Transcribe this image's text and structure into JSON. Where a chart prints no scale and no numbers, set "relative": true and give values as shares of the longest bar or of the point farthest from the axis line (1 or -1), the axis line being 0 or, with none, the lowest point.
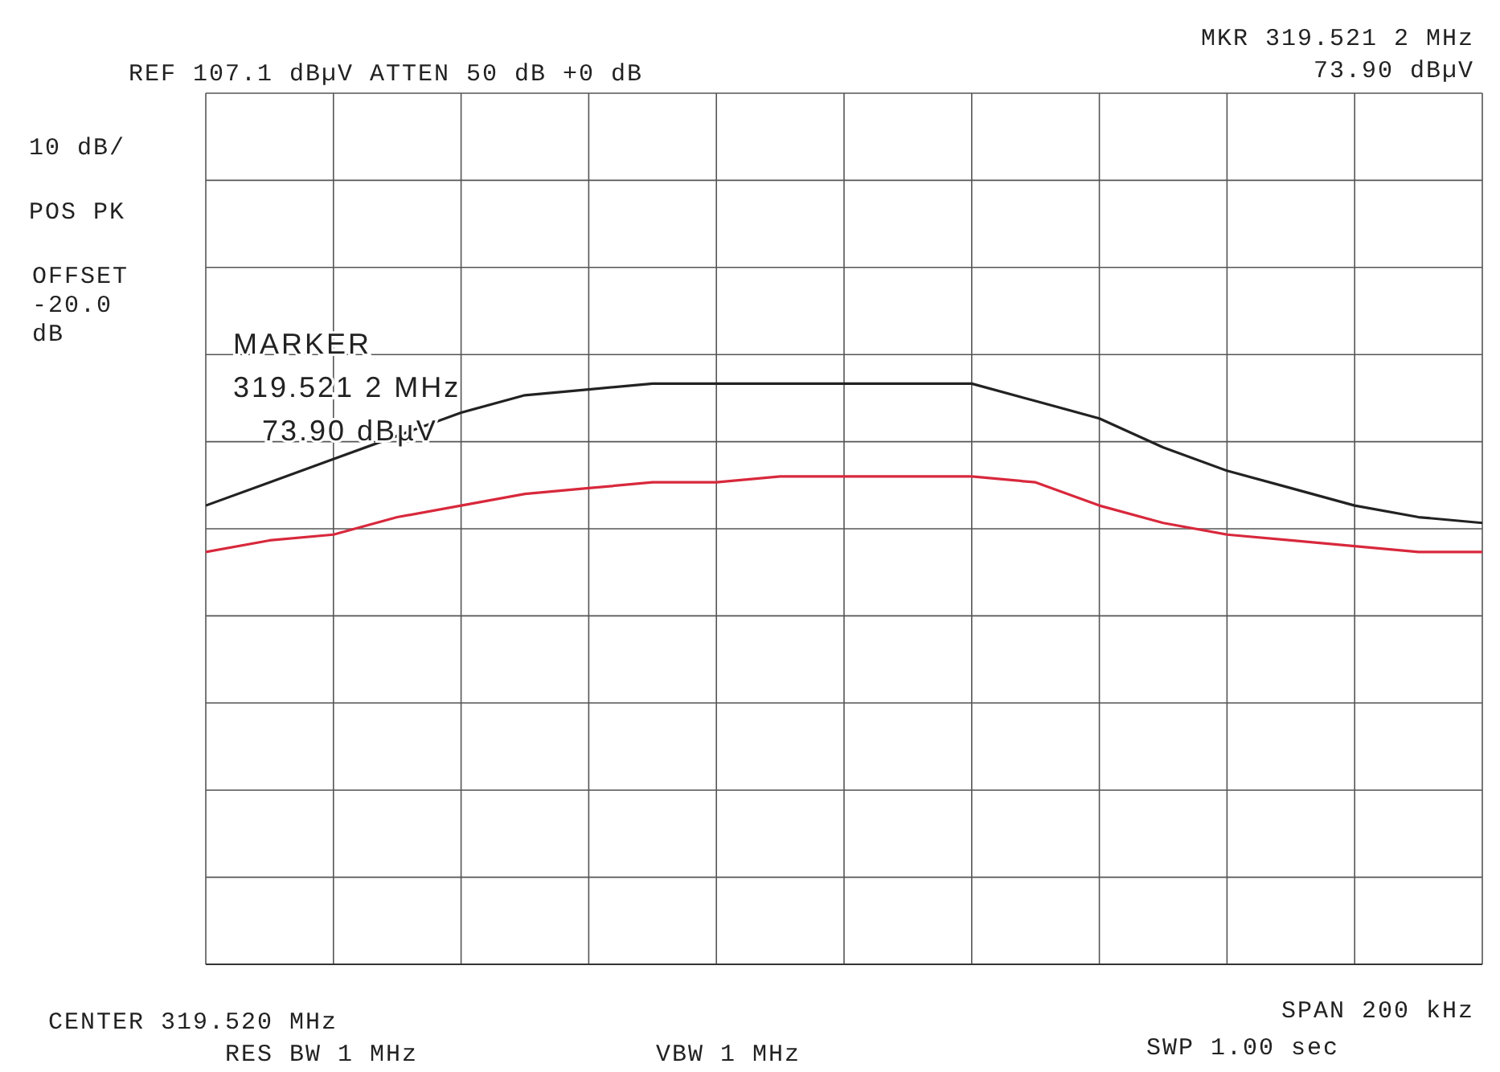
{
  "chart_data": {
    "type": "line",
    "annotations": [
      "REF 107.1 dBµV ATTEN 50 dB +0 dB",
      "MKR 319.521 2 MHz",
      "73.90 dBµV",
      "10 dB/",
      "POS PK",
      "OFFSET\n-20.0\ndB",
      "CENTER 319.520 MHz",
      "RES BW 1 MHz",
      "VBW 1 MHz",
      "SPAN 200 kHz",
      "SWP 1.00 sec",
      "MARKER\n319.521 2 MHz\n73.90 dBµV"
    ],
    "categories": [
      null,
      null,
      null,
      null,
      null,
      null,
      null,
      null,
      null,
      null,
      null,
      null,
      null,
      null,
      null,
      null,
      null,
      null,
      null,
      null,
      null
    ],
    "relative": true,
    "series": [
      {
        "color": "#222222",
        "values": [
          0.79,
          0.83,
          0.87,
          0.91,
          0.95,
          0.98,
          0.99,
          1.0,
          1.0,
          1.0,
          1.0,
          1.0,
          1.0,
          0.97,
          0.94,
          0.89,
          0.85,
          0.82,
          0.79,
          0.77,
          0.76
        ]
      },
      {
        "color": "#d8283c",
        "values": [
          0.71,
          0.73,
          0.74,
          0.77,
          0.79,
          0.81,
          0.82,
          0.83,
          0.83,
          0.84,
          0.84,
          0.84,
          0.84,
          0.83,
          0.79,
          0.76,
          0.74,
          0.73,
          0.72,
          0.71,
          0.71
        ]
      }
    ],
    "grid": true,
    "marker": "none",
    "line_style": "solid"
  }
}
